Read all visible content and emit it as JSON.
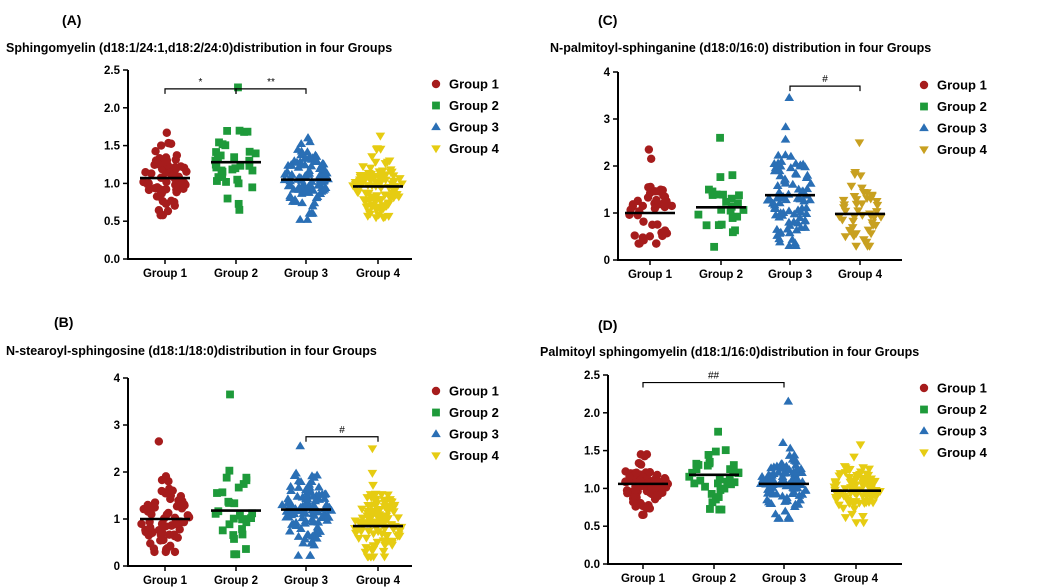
{
  "colors": {
    "group1": "#a61c1c",
    "group2": "#1e9a3a",
    "group3": "#2a6fb5",
    "group4_a": "#e6cc12",
    "group4_c": "#c8a020"
  },
  "chart_data": [
    {
      "id": "A",
      "panel_label": "(A)",
      "type": "scatter",
      "title": "Sphingomyelin (d18:1/24:1,d18:2/24:0)distribution in four Groups",
      "categories": [
        "Group 1",
        "Group 2",
        "Group 3",
        "Group 4"
      ],
      "ylim": [
        0,
        2.5
      ],
      "yticks": [
        0.0,
        0.5,
        1.0,
        1.5,
        2.0,
        2.5
      ],
      "ytick_labels": [
        "0.0",
        "0.5",
        "1.0",
        "1.5",
        "2.0",
        "2.5"
      ],
      "legend": [
        "Group 1",
        "Group 2",
        "Group 3",
        "Group 4"
      ],
      "legend_position": "right",
      "series": [
        {
          "name": "Group 1",
          "marker": "circle",
          "color": "#a61c1c",
          "mean": 1.07,
          "n": 70,
          "min": 0.58,
          "max": 1.67,
          "spread": 0.19
        },
        {
          "name": "Group 2",
          "marker": "square",
          "color": "#1e9a3a",
          "mean": 1.28,
          "n": 35,
          "min": 0.65,
          "max": 2.27,
          "spread": 0.3
        },
        {
          "name": "Group 3",
          "marker": "triangle-up",
          "color": "#2a6fb5",
          "mean": 1.05,
          "n": 110,
          "min": 0.52,
          "max": 1.6,
          "spread": 0.22
        },
        {
          "name": "Group 4",
          "marker": "triangle-down",
          "color": "#e6cc12",
          "mean": 0.96,
          "n": 110,
          "min": 0.55,
          "max": 1.63,
          "spread": 0.22
        }
      ],
      "annotations": [
        {
          "from": 0,
          "to": 1,
          "label": "*",
          "y": 2.25
        },
        {
          "from": 1,
          "to": 2,
          "label": "**",
          "y": 2.25
        }
      ]
    },
    {
      "id": "B",
      "panel_label": "(B)",
      "type": "scatter",
      "title": "N-stearoyl-sphingosine (d18:1/18:0)distribution in four Groups",
      "categories": [
        "Group 1",
        "Group 2",
        "Group 3",
        "Group 4"
      ],
      "ylim": [
        0,
        4
      ],
      "yticks": [
        0,
        1,
        2,
        3,
        4
      ],
      "ytick_labels": [
        "0",
        "1",
        "2",
        "3",
        "4"
      ],
      "legend": [
        "Group 1",
        "Group 2",
        "Group 3",
        "Group 4"
      ],
      "legend_position": "right",
      "series": [
        {
          "name": "Group 1",
          "marker": "circle",
          "color": "#a61c1c",
          "mean": 1.0,
          "n": 70,
          "min": 0.3,
          "max": 2.65,
          "spread": 0.4
        },
        {
          "name": "Group 2",
          "marker": "square",
          "color": "#1e9a3a",
          "mean": 1.18,
          "n": 30,
          "min": 0.25,
          "max": 3.65,
          "spread": 0.45
        },
        {
          "name": "Group 3",
          "marker": "triangle-up",
          "color": "#2a6fb5",
          "mean": 1.2,
          "n": 110,
          "min": 0.22,
          "max": 2.55,
          "spread": 0.45
        },
        {
          "name": "Group 4",
          "marker": "triangle-down",
          "color": "#e6cc12",
          "mean": 0.85,
          "n": 110,
          "min": 0.2,
          "max": 2.5,
          "spread": 0.4
        }
      ],
      "annotations": [
        {
          "from": 2,
          "to": 3,
          "label": "#",
          "y": 2.75
        }
      ]
    },
    {
      "id": "C",
      "panel_label": "(C)",
      "type": "scatter",
      "title": "N-palmitoyl-sphinganine (d18:0/16:0) distribution in four Groups",
      "categories": [
        "Group 1",
        "Group 2",
        "Group 3",
        "Group 4"
      ],
      "ylim": [
        0,
        4
      ],
      "yticks": [
        0,
        1,
        2,
        3,
        4
      ],
      "ytick_labels": [
        "0",
        "1",
        "2",
        "3",
        "4"
      ],
      "legend": [
        "Group 1",
        "Group 2",
        "Group 3",
        "Group 4"
      ],
      "legend_position": "right",
      "series": [
        {
          "name": "Group 1",
          "marker": "circle",
          "color": "#a61c1c",
          "mean": 1.0,
          "n": 45,
          "min": 0.35,
          "max": 2.35,
          "spread": 0.4
        },
        {
          "name": "Group 2",
          "marker": "square",
          "color": "#1e9a3a",
          "mean": 1.12,
          "n": 25,
          "min": 0.28,
          "max": 2.6,
          "spread": 0.4
        },
        {
          "name": "Group 3",
          "marker": "triangle-up",
          "color": "#2a6fb5",
          "mean": 1.38,
          "n": 90,
          "min": 0.3,
          "max": 3.45,
          "spread": 0.55
        },
        {
          "name": "Group 4",
          "marker": "triangle-down",
          "color": "#c8a020",
          "mean": 0.98,
          "n": 50,
          "min": 0.3,
          "max": 2.5,
          "spread": 0.4
        }
      ],
      "annotations": [
        {
          "from": 2,
          "to": 3,
          "label": "#",
          "y": 3.7
        }
      ]
    },
    {
      "id": "D",
      "panel_label": "(D)",
      "type": "scatter",
      "title": "Palmitoyl sphingomyelin (d18:1/16:0)distribution in four Groups",
      "categories": [
        "Group 1",
        "Group 2",
        "Group 3",
        "Group 4"
      ],
      "ylim": [
        0,
        2.5
      ],
      "yticks": [
        0.0,
        0.5,
        1.0,
        1.5,
        2.0,
        2.5
      ],
      "ytick_labels": [
        "0.0",
        "0.5",
        "1.0",
        "1.5",
        "2.0",
        "2.5"
      ],
      "legend": [
        "Group 1",
        "Group 2",
        "Group 3",
        "Group 4"
      ],
      "legend_position": "right",
      "series": [
        {
          "name": "Group 1",
          "marker": "circle",
          "color": "#a61c1c",
          "mean": 1.06,
          "n": 75,
          "min": 0.65,
          "max": 1.45,
          "spread": 0.16
        },
        {
          "name": "Group 2",
          "marker": "square",
          "color": "#1e9a3a",
          "mean": 1.18,
          "n": 35,
          "min": 0.72,
          "max": 1.75,
          "spread": 0.22
        },
        {
          "name": "Group 3",
          "marker": "triangle-up",
          "color": "#2a6fb5",
          "mean": 1.06,
          "n": 100,
          "min": 0.6,
          "max": 2.15,
          "spread": 0.22
        },
        {
          "name": "Group 4",
          "marker": "triangle-down",
          "color": "#e6cc12",
          "mean": 0.97,
          "n": 90,
          "min": 0.55,
          "max": 1.58,
          "spread": 0.19
        }
      ],
      "annotations": [
        {
          "from": 0,
          "to": 2,
          "label": "##",
          "y": 2.4
        }
      ]
    }
  ]
}
